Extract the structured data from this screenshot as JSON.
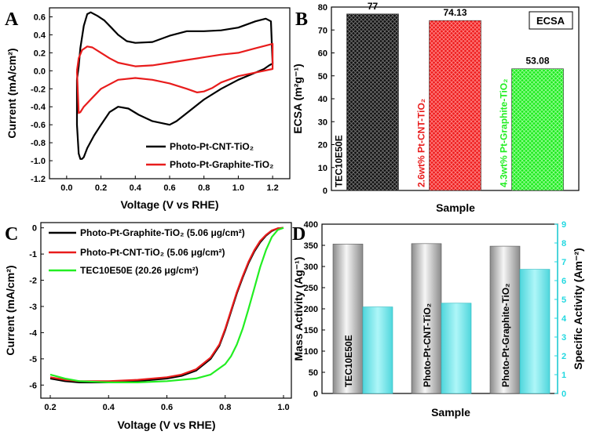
{
  "colors": {
    "black": "#000000",
    "red": "#e81c1c",
    "green": "#22ee22",
    "cyan": "#22d8e0",
    "silver": "#c8c8c8"
  },
  "chart_data": [
    {
      "panel": "A",
      "type": "line",
      "xlabel": "Voltage (V vs RHE)",
      "ylabel": "Current (mA/cm²)",
      "xlim": [
        -0.1,
        1.3
      ],
      "ylim": [
        -1.2,
        0.7
      ],
      "xticks": [
        "0.0",
        "0.2",
        "0.4",
        "0.6",
        "0.8",
        "1.0",
        "1.2"
      ],
      "yticks": [
        "-1.2",
        "-1.0",
        "-0.8",
        "-0.6",
        "-0.4",
        "-0.2",
        "0.0",
        "0.2",
        "0.4",
        "0.6"
      ],
      "legend_position": "bottom-right",
      "series": [
        {
          "name": "Photo-Pt-CNT-TiO₂",
          "color": "#000000",
          "x": [
            0.06,
            0.07,
            0.08,
            0.1,
            0.12,
            0.14,
            0.18,
            0.22,
            0.26,
            0.3,
            0.35,
            0.4,
            0.5,
            0.6,
            0.7,
            0.8,
            0.9,
            1.0,
            1.1,
            1.16,
            1.19,
            1.2,
            1.18,
            1.15,
            1.1,
            1.0,
            0.9,
            0.8,
            0.7,
            0.64,
            0.6,
            0.5,
            0.42,
            0.36,
            0.3,
            0.25,
            0.2,
            0.16,
            0.12,
            0.1,
            0.09,
            0.08,
            0.07,
            0.06,
            0.06
          ],
          "y": [
            -0.1,
            0.05,
            0.25,
            0.5,
            0.63,
            0.65,
            0.61,
            0.56,
            0.48,
            0.4,
            0.33,
            0.31,
            0.32,
            0.39,
            0.44,
            0.44,
            0.45,
            0.48,
            0.55,
            0.58,
            0.55,
            0.08,
            0.06,
            0.02,
            -0.02,
            -0.1,
            -0.2,
            -0.32,
            -0.47,
            -0.56,
            -0.6,
            -0.56,
            -0.49,
            -0.42,
            -0.4,
            -0.46,
            -0.6,
            -0.72,
            -0.86,
            -0.96,
            -0.98,
            -0.98,
            -0.92,
            -0.6,
            -0.1
          ]
        },
        {
          "name": "Photo-Pt-Graphite-TiO₂",
          "color": "#e81c1c",
          "x": [
            0.06,
            0.07,
            0.09,
            0.12,
            0.15,
            0.2,
            0.25,
            0.3,
            0.4,
            0.5,
            0.6,
            0.7,
            0.8,
            0.9,
            1.0,
            1.1,
            1.2,
            1.2,
            1.1,
            1.0,
            0.9,
            0.85,
            0.8,
            0.76,
            0.7,
            0.6,
            0.5,
            0.4,
            0.3,
            0.2,
            0.15,
            0.1,
            0.08,
            0.07,
            0.06
          ],
          "y": [
            0.0,
            0.14,
            0.23,
            0.27,
            0.26,
            0.2,
            0.14,
            0.09,
            0.05,
            0.06,
            0.09,
            0.12,
            0.15,
            0.18,
            0.2,
            0.25,
            0.3,
            0.02,
            -0.02,
            -0.06,
            -0.13,
            -0.19,
            -0.23,
            -0.24,
            -0.2,
            -0.14,
            -0.1,
            -0.08,
            -0.1,
            -0.2,
            -0.3,
            -0.4,
            -0.46,
            -0.47,
            0.0
          ]
        }
      ]
    },
    {
      "panel": "B",
      "type": "bar",
      "xlabel": "Sample",
      "ylabel": "ECSA (m²g⁻¹)",
      "annotation": "ECSA",
      "ylim": [
        0,
        80
      ],
      "yticks": [
        "0",
        "10",
        "20",
        "30",
        "40",
        "50",
        "60",
        "70",
        "80"
      ],
      "categories": [
        "TEC10E50E",
        "2.6wt% Pt-CNT-TiO₂",
        "4.3wt% Pt-Graphite-TiO₂"
      ],
      "values": [
        77,
        74.13,
        53.08
      ],
      "value_labels": [
        "77",
        "74.13",
        "53.08"
      ],
      "bar_colors": [
        "#000000",
        "#e81c1c",
        "#22ee22"
      ]
    },
    {
      "panel": "C",
      "type": "line",
      "xlabel": "Voltage (V vs RHE)",
      "ylabel": "Current (mA/cm²)",
      "xlim": [
        0.2,
        1.0
      ],
      "ylim": [
        -6.5,
        0.2
      ],
      "xticks": [
        "0.2",
        "0.4",
        "0.6",
        "0.8",
        "1.0"
      ],
      "yticks": [
        "-6",
        "-5",
        "-4",
        "-3",
        "-2",
        "-1",
        "0"
      ],
      "legend_position": "top-left",
      "series": [
        {
          "name": "Photo-Pt-Graphite-TiO₂ (5.06 μg/cm²)",
          "color": "#000000",
          "x": [
            0.2,
            0.25,
            0.3,
            0.4,
            0.5,
            0.6,
            0.65,
            0.7,
            0.75,
            0.78,
            0.8,
            0.82,
            0.84,
            0.86,
            0.88,
            0.9,
            0.92,
            0.94,
            0.96,
            0.98,
            1.0
          ],
          "y": [
            -5.75,
            -5.85,
            -5.9,
            -5.9,
            -5.85,
            -5.75,
            -5.65,
            -5.45,
            -5.0,
            -4.5,
            -3.9,
            -3.2,
            -2.5,
            -1.9,
            -1.35,
            -0.9,
            -0.55,
            -0.3,
            -0.12,
            -0.02,
            0.0
          ]
        },
        {
          "name": "Photo-Pt-CNT-TiO₂ (5.06 μg/cm²)",
          "color": "#e81c1c",
          "x": [
            0.2,
            0.25,
            0.3,
            0.4,
            0.5,
            0.6,
            0.65,
            0.7,
            0.75,
            0.78,
            0.8,
            0.82,
            0.84,
            0.86,
            0.88,
            0.9,
            0.92,
            0.94,
            0.96,
            0.98,
            1.0
          ],
          "y": [
            -5.7,
            -5.8,
            -5.85,
            -5.85,
            -5.8,
            -5.7,
            -5.6,
            -5.4,
            -4.95,
            -4.45,
            -3.85,
            -3.15,
            -2.45,
            -1.85,
            -1.3,
            -0.85,
            -0.5,
            -0.27,
            -0.1,
            -0.02,
            0.0
          ]
        },
        {
          "name": "TEC10E50E (20.26 μg/cm²)",
          "color": "#22ee22",
          "x": [
            0.2,
            0.25,
            0.3,
            0.4,
            0.5,
            0.6,
            0.7,
            0.75,
            0.8,
            0.82,
            0.84,
            0.86,
            0.88,
            0.9,
            0.92,
            0.94,
            0.96,
            0.98,
            1.0
          ],
          "y": [
            -5.6,
            -5.75,
            -5.85,
            -5.9,
            -5.9,
            -5.85,
            -5.75,
            -5.6,
            -5.2,
            -4.9,
            -4.45,
            -3.85,
            -3.1,
            -2.3,
            -1.5,
            -0.85,
            -0.35,
            -0.08,
            0.0
          ]
        }
      ]
    },
    {
      "panel": "D",
      "type": "bar",
      "xlabel": "Sample",
      "ylabel_left": "Mass Activity (Ag⁻¹)",
      "ylabel_right": "Specific Activity (Am⁻²)",
      "ylim_left": [
        0,
        400
      ],
      "ylim_right": [
        0,
        9
      ],
      "yticks_left": [
        "0",
        "50",
        "100",
        "150",
        "200",
        "250",
        "300",
        "350",
        "400"
      ],
      "yticks_right": [
        "0",
        "1",
        "2",
        "3",
        "4",
        "5",
        "6",
        "7",
        "8",
        "9"
      ],
      "categories": [
        "TEC10E50E",
        "Photo-Pt-CNT-TiO₂",
        "Photo-Pt-Graphite-TiO₂"
      ],
      "series": [
        {
          "name": "Mass Activity",
          "axis": "left",
          "values": [
            353,
            354,
            348
          ]
        },
        {
          "name": "Specific Activity",
          "axis": "right",
          "values": [
            4.6,
            4.8,
            6.6
          ]
        }
      ]
    }
  ]
}
